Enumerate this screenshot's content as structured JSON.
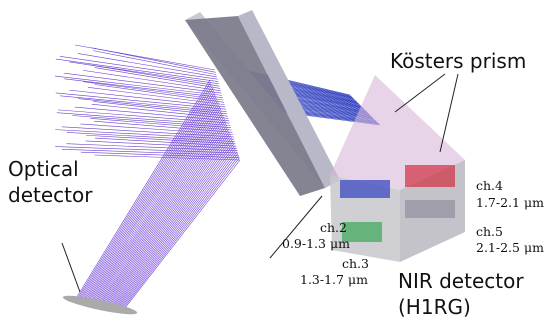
{
  "labels": {
    "prism": "Kösters prism",
    "optical_detector": [
      "Optical",
      "detector"
    ],
    "channels": [
      {
        "name": "ch.2",
        "range": "0.9-1.3 μm"
      },
      {
        "name": "ch.3",
        "range": "1.3-1.7 μm"
      },
      {
        "name": "ch.4",
        "range": "1.7-2.1 μm"
      },
      {
        "name": "ch.5",
        "range": "2.1-2.5 μm"
      }
    ],
    "nir_detector": [
      "NIR detector",
      "(H1RG)"
    ]
  }
}
